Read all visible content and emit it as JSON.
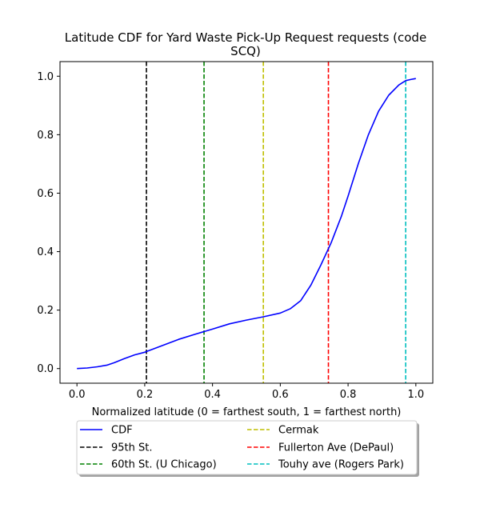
{
  "chart_data": {
    "type": "line",
    "title_lines": [
      "Latitude CDF for Yard Waste Pick-Up Request  requests (code",
      "SCQ)"
    ],
    "xlabel": "Normalized latitude (0 = farthest south, 1 = farthest north)",
    "ylabel": "",
    "xlim": [
      -0.05,
      1.05
    ],
    "ylim": [
      -0.05,
      1.05
    ],
    "xticks": [
      0.0,
      0.2,
      0.4,
      0.6,
      0.8,
      1.0
    ],
    "yticks": [
      0.0,
      0.2,
      0.4,
      0.6,
      0.8,
      1.0
    ],
    "grid": false,
    "legend_location": "below the plot, two columns",
    "series": [
      {
        "name": "CDF",
        "color": "#0000ff",
        "style": "solid",
        "x": [
          0.0,
          0.03,
          0.06,
          0.09,
          0.11,
          0.14,
          0.17,
          0.2,
          0.25,
          0.3,
          0.35,
          0.4,
          0.45,
          0.5,
          0.55,
          0.6,
          0.63,
          0.66,
          0.69,
          0.72,
          0.75,
          0.78,
          0.8,
          0.83,
          0.86,
          0.89,
          0.92,
          0.95,
          0.97,
          0.99,
          1.0
        ],
        "y": [
          0.0,
          0.002,
          0.006,
          0.012,
          0.02,
          0.034,
          0.047,
          0.056,
          0.078,
          0.1,
          0.118,
          0.135,
          0.153,
          0.166,
          0.177,
          0.19,
          0.205,
          0.232,
          0.285,
          0.355,
          0.43,
          0.52,
          0.59,
          0.7,
          0.8,
          0.88,
          0.935,
          0.97,
          0.985,
          0.99,
          0.992
        ]
      }
    ],
    "vlines": [
      {
        "name": "95th St.",
        "x": 0.205,
        "color": "#000000"
      },
      {
        "name": "60th St. (U Chicago)",
        "x": 0.375,
        "color": "#008000"
      },
      {
        "name": "Cermak",
        "x": 0.55,
        "color": "#bfbf00"
      },
      {
        "name": "Fullerton Ave (DePaul)",
        "x": 0.742,
        "color": "#ff0000"
      },
      {
        "name": "Touhy ave (Rogers Park)",
        "x": 0.97,
        "color": "#00bfbf"
      }
    ]
  }
}
